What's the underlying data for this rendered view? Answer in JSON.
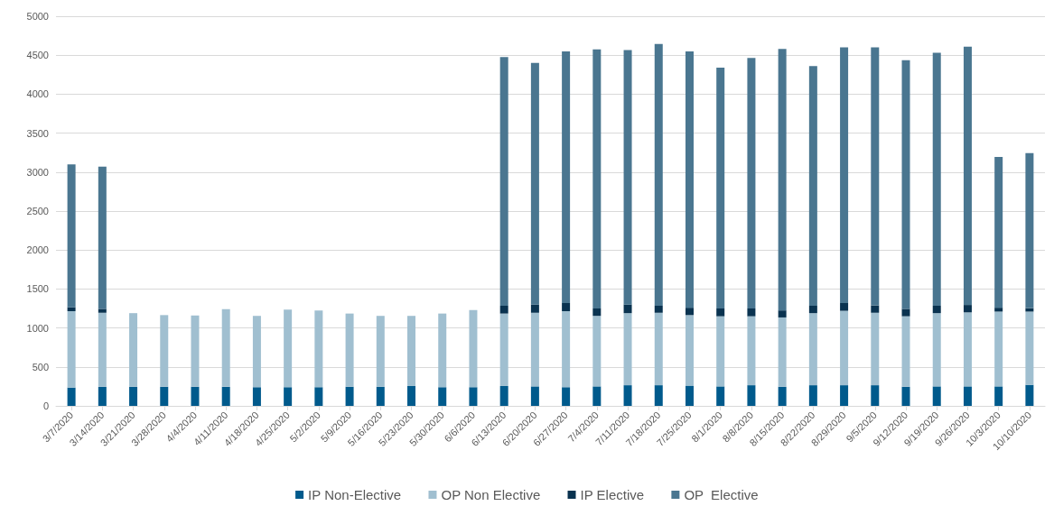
{
  "chart_data": {
    "type": "bar",
    "stacked": true,
    "categories": [
      "3/7/2020",
      "3/14/2020",
      "3/21/2020",
      "3/28/2020",
      "4/4/2020",
      "4/11/2020",
      "4/18/2020",
      "4/25/2020",
      "5/2/2020",
      "5/9/2020",
      "5/16/2020",
      "5/23/2020",
      "5/30/2020",
      "6/6/2020",
      "6/13/2020",
      "6/20/2020",
      "6/27/2020",
      "7/4/2020",
      "7/11/2020",
      "7/18/2020",
      "7/25/2020",
      "8/1/2020",
      "8/8/2020",
      "8/15/2020",
      "8/22/2020",
      "8/29/2020",
      "9/5/2020",
      "9/12/2020",
      "9/19/2020",
      "9/26/2020",
      "10/3/2020",
      "10/10/2020"
    ],
    "series": [
      {
        "name": "IP Non-Elective",
        "color": "#005a8c",
        "values": [
          235,
          245,
          245,
          245,
          245,
          245,
          240,
          240,
          240,
          245,
          245,
          255,
          240,
          240,
          255,
          250,
          240,
          250,
          265,
          265,
          260,
          250,
          265,
          245,
          265,
          265,
          265,
          245,
          250,
          250,
          250,
          270
        ]
      },
      {
        "name": "OP Non Elective",
        "color": "#a0bfd0",
        "values": [
          980,
          950,
          945,
          920,
          915,
          995,
          915,
          995,
          985,
          940,
          910,
          900,
          945,
          990,
          930,
          945,
          975,
          905,
          925,
          930,
          905,
          900,
          885,
          890,
          925,
          955,
          930,
          905,
          940,
          950,
          960,
          940
        ]
      },
      {
        "name": "IP Elective",
        "color": "#0a3350",
        "values": [
          50,
          50,
          null,
          null,
          null,
          null,
          null,
          null,
          null,
          null,
          null,
          null,
          null,
          null,
          100,
          105,
          105,
          95,
          110,
          90,
          95,
          100,
          100,
          90,
          95,
          100,
          95,
          95,
          95,
          95,
          50,
          45
        ]
      },
      {
        "name": "OP  Elective",
        "color": "#4a7690",
        "values": [
          1835,
          1825,
          null,
          null,
          null,
          null,
          null,
          null,
          null,
          null,
          null,
          null,
          null,
          null,
          3190,
          3100,
          3230,
          3325,
          3265,
          3360,
          3290,
          3090,
          3215,
          3355,
          3075,
          3280,
          3310,
          3190,
          3245,
          3315,
          1935,
          1990
        ]
      }
    ],
    "ylim": [
      0,
      5000
    ],
    "yticks": [
      0,
      500,
      1000,
      1500,
      2000,
      2500,
      3000,
      3500,
      4000,
      4500,
      5000
    ],
    "grid": "y",
    "legend": "bottom"
  }
}
